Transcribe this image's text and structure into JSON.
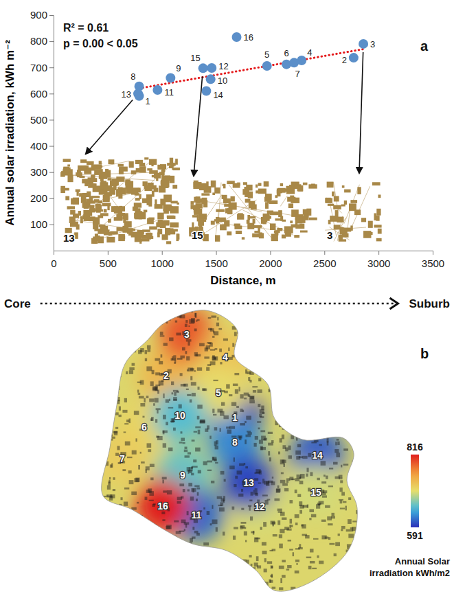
{
  "chart_data": [
    {
      "type": "scatter",
      "panel_label": "a",
      "x_label": "Distance, m",
      "y_label": "Annual solar irradiation, kWh m⁻²",
      "xlim": [
        0,
        3500
      ],
      "xticks": [
        0,
        500,
        1000,
        1500,
        2000,
        2500,
        3000,
        3500
      ],
      "ylim": [
        0,
        900
      ],
      "yticks": [
        100,
        200,
        300,
        400,
        500,
        600,
        700,
        800,
        900
      ],
      "labels": [
        "1",
        "2",
        "3",
        "4",
        "5",
        "6",
        "7",
        "8",
        "9",
        "10",
        "11",
        "12",
        "13",
        "14",
        "15",
        "16"
      ],
      "x": [
        790,
        2770,
        2860,
        2290,
        1970,
        2150,
        2220,
        790,
        1080,
        1450,
        960,
        1460,
        780,
        1410,
        1380,
        1690
      ],
      "values": [
        591,
        737,
        790,
        727,
        706,
        712,
        718,
        628,
        660,
        655,
        614,
        698,
        600,
        610,
        697,
        816
      ],
      "color": "#5b8fc9",
      "marker": "circle",
      "trend": {
        "type": "line",
        "x": [
          790,
          2860
        ],
        "values": [
          620,
          770
        ],
        "color": "#e41a1c",
        "line_style": "dotted"
      },
      "annotations": [
        "R² = 0.61",
        "p = 0.00 < 0.05"
      ],
      "inset_labels": [
        "13",
        "15",
        "3"
      ],
      "direction_labels": [
        "Core",
        "Suburb"
      ]
    },
    {
      "type": "map",
      "panel_label": "b",
      "labels": [
        "1",
        "2",
        "3",
        "4",
        "5",
        "6",
        "7",
        "8",
        "9",
        "10",
        "11",
        "12",
        "13",
        "14",
        "15",
        "16"
      ],
      "values": [
        591,
        737,
        790,
        727,
        706,
        712,
        718,
        628,
        660,
        655,
        614,
        698,
        600,
        610,
        697,
        816
      ],
      "colorbar": {
        "range": [
          591,
          816
        ],
        "ticks": [
          591,
          816
        ],
        "title": "Annual Solar irradiation kWh/m2"
      }
    }
  ]
}
